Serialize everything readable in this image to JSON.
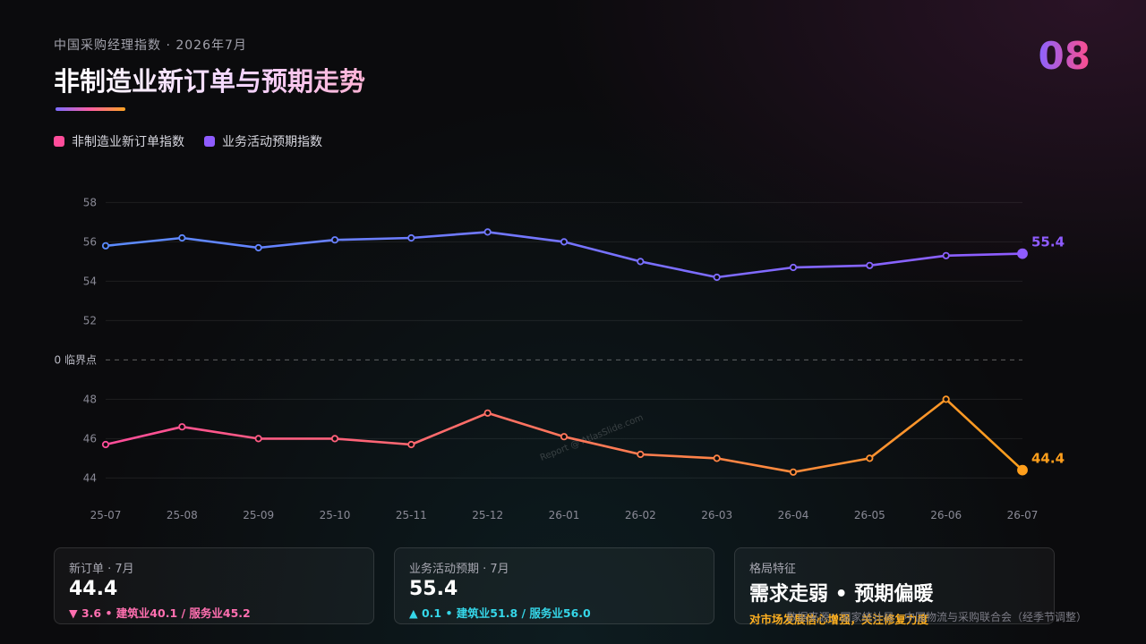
{
  "header": {
    "subtitle": "中国采购经理指数 · 2026年7月",
    "title": "非制造业新订单与预期走势",
    "page_number": "08"
  },
  "colors": {
    "new_orders_start": "#ff4d9a",
    "new_orders_end": "#ff9f1c",
    "expectations_start": "#5b8cff",
    "expectations_end": "#8f5cff",
    "down": "#ff6fb0",
    "up": "#35d6e8",
    "highlight": "#ffb020"
  },
  "chart_data": {
    "type": "line",
    "x": [
      "25-07",
      "25-08",
      "25-09",
      "25-10",
      "25-11",
      "25-12",
      "26-01",
      "26-02",
      "26-03",
      "26-04",
      "26-05",
      "26-06",
      "26-07"
    ],
    "series": [
      {
        "name": "非制造业新订单指数",
        "values": [
          45.7,
          46.6,
          46.0,
          46.0,
          45.7,
          47.3,
          46.1,
          45.2,
          45.0,
          44.3,
          45.0,
          48.0,
          44.4
        ],
        "end_label": "44.4"
      },
      {
        "name": "业务活动预期指数",
        "values": [
          55.8,
          56.2,
          55.7,
          56.1,
          56.2,
          56.5,
          56.0,
          55.0,
          54.2,
          54.7,
          54.8,
          55.3,
          55.4
        ],
        "end_label": "55.4"
      }
    ],
    "y_ticks": [
      44,
      46,
      48,
      52,
      54,
      56,
      58
    ],
    "ylim": [
      43.2,
      58.2
    ],
    "reference_line": {
      "value": 50,
      "label": "0 临界点"
    },
    "grid": true,
    "legend_position": "top-left"
  },
  "cards": [
    {
      "label": "新订单 · 7月",
      "value": "44.4",
      "detail": "▼ 3.6 • 建筑业40.1 / 服务业45.2"
    },
    {
      "label": "业务活动预期 · 7月",
      "value": "55.4",
      "detail": "▲ 0.1 • 建筑业51.8 / 服务业56.0"
    },
    {
      "label": "格局特征",
      "value": "需求走弱 • 预期偏暖",
      "detail": "对市场发展信心增强，关注修复力度"
    }
  ],
  "watermark": "Report @ AtlasSlide.com",
  "source": "数据来源：国家统计局 · 中国物流与采购联合会（经季节调整）"
}
